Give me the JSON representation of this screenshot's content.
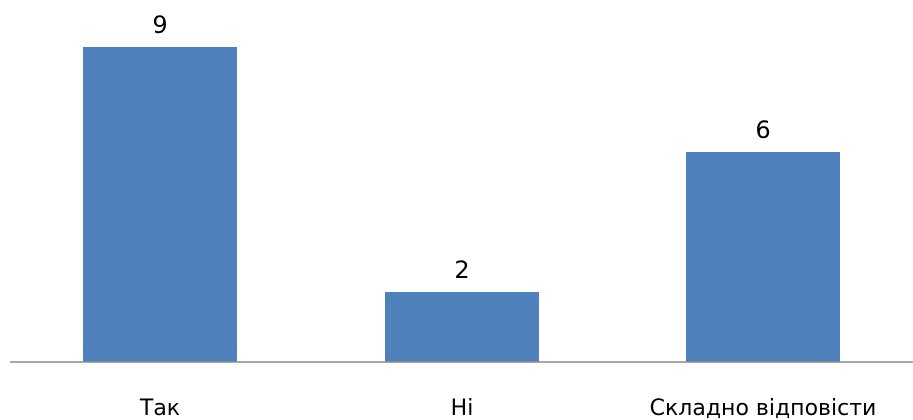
{
  "chart_data": {
    "type": "bar",
    "categories": [
      "Так",
      "Ні",
      "Складно відповісти"
    ],
    "values": [
      9,
      2,
      6
    ],
    "title": "",
    "xlabel": "",
    "ylabel": "",
    "ylim": [
      0,
      9
    ],
    "grid": false,
    "legend": "none",
    "bar_color": "#4f81bd",
    "axis_color": "#8c8c8c",
    "show_data_labels": true
  }
}
